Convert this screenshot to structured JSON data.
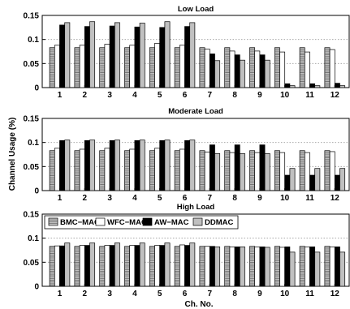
{
  "figure": {
    "ylabel": "Channel Usage (%)",
    "xlabel": "Ch. No."
  },
  "chart_data": [
    {
      "type": "bar",
      "title": "Low Load",
      "categories": [
        "1",
        "2",
        "3",
        "4",
        "5",
        "6",
        "7",
        "8",
        "9",
        "10",
        "11",
        "12"
      ],
      "ylim": [
        0,
        0.15
      ],
      "yticks": [
        "0",
        "0.05",
        "0.1",
        "0.15"
      ],
      "grid": true,
      "series": [
        {
          "name": "BMC−MAC",
          "color": "#c0c0c0",
          "values": [
            0.083,
            0.083,
            0.083,
            0.083,
            0.083,
            0.083,
            0.083,
            0.083,
            0.083,
            0.083,
            0.083,
            0.083
          ]
        },
        {
          "name": "WFC−MAC",
          "color": "#ffffff",
          "values": [
            0.088,
            0.088,
            0.09,
            0.088,
            0.092,
            0.088,
            0.08,
            0.076,
            0.076,
            0.074,
            0.074,
            0.079
          ]
        },
        {
          "name": "AW−MAC",
          "color": "#000000",
          "values": [
            0.13,
            0.127,
            0.128,
            0.126,
            0.125,
            0.127,
            0.07,
            0.068,
            0.068,
            0.008,
            0.008,
            0.009
          ]
        },
        {
          "name": "DDMAC",
          "color": "#c0c0c0",
          "values": [
            0.135,
            0.137,
            0.135,
            0.134,
            0.137,
            0.135,
            0.056,
            0.057,
            0.057,
            0.004,
            0.004,
            0.004
          ]
        }
      ]
    },
    {
      "type": "bar",
      "title": "Moderate Load",
      "categories": [
        "1",
        "2",
        "3",
        "4",
        "5",
        "6",
        "7",
        "8",
        "9",
        "10",
        "11",
        "12"
      ],
      "ylim": [
        0,
        0.15
      ],
      "yticks": [
        "0",
        "0.05",
        "0.1",
        "0.15"
      ],
      "grid": true,
      "series": [
        {
          "name": "BMC−MAC",
          "color": "#c0c0c0",
          "values": [
            0.083,
            0.083,
            0.083,
            0.083,
            0.083,
            0.083,
            0.083,
            0.083,
            0.083,
            0.083,
            0.083,
            0.083
          ]
        },
        {
          "name": "WFC−MAC",
          "color": "#ffffff",
          "values": [
            0.088,
            0.086,
            0.088,
            0.086,
            0.088,
            0.086,
            0.08,
            0.079,
            0.079,
            0.079,
            0.079,
            0.081
          ]
        },
        {
          "name": "AW−MAC",
          "color": "#000000",
          "values": [
            0.104,
            0.104,
            0.104,
            0.104,
            0.104,
            0.104,
            0.095,
            0.095,
            0.095,
            0.032,
            0.032,
            0.032
          ]
        },
        {
          "name": "DDMAC",
          "color": "#c0c0c0",
          "values": [
            0.105,
            0.105,
            0.105,
            0.105,
            0.105,
            0.105,
            0.077,
            0.077,
            0.077,
            0.046,
            0.046,
            0.046
          ]
        }
      ]
    },
    {
      "type": "bar",
      "title": "High Load",
      "categories": [
        "1",
        "2",
        "3",
        "4",
        "5",
        "6",
        "7",
        "8",
        "9",
        "10",
        "11",
        "12"
      ],
      "ylim": [
        0,
        0.15
      ],
      "yticks": [
        "0",
        "0.05",
        "0.1",
        "0.15"
      ],
      "grid": true,
      "legend": "top",
      "series": [
        {
          "name": "BMC−MAC",
          "color": "#c0c0c0",
          "values": [
            0.083,
            0.083,
            0.083,
            0.083,
            0.083,
            0.083,
            0.083,
            0.083,
            0.083,
            0.083,
            0.083,
            0.083
          ]
        },
        {
          "name": "WFC−MAC",
          "color": "#ffffff",
          "values": [
            0.084,
            0.085,
            0.085,
            0.085,
            0.085,
            0.086,
            0.083,
            0.082,
            0.082,
            0.081,
            0.082,
            0.082
          ]
        },
        {
          "name": "AW−MAC",
          "color": "#000000",
          "values": [
            0.084,
            0.085,
            0.085,
            0.085,
            0.085,
            0.085,
            0.083,
            0.082,
            0.082,
            0.082,
            0.082,
            0.082
          ]
        },
        {
          "name": "DDMAC",
          "color": "#c0c0c0",
          "values": [
            0.09,
            0.09,
            0.09,
            0.09,
            0.09,
            0.09,
            0.082,
            0.082,
            0.081,
            0.071,
            0.071,
            0.071
          ]
        }
      ]
    }
  ]
}
